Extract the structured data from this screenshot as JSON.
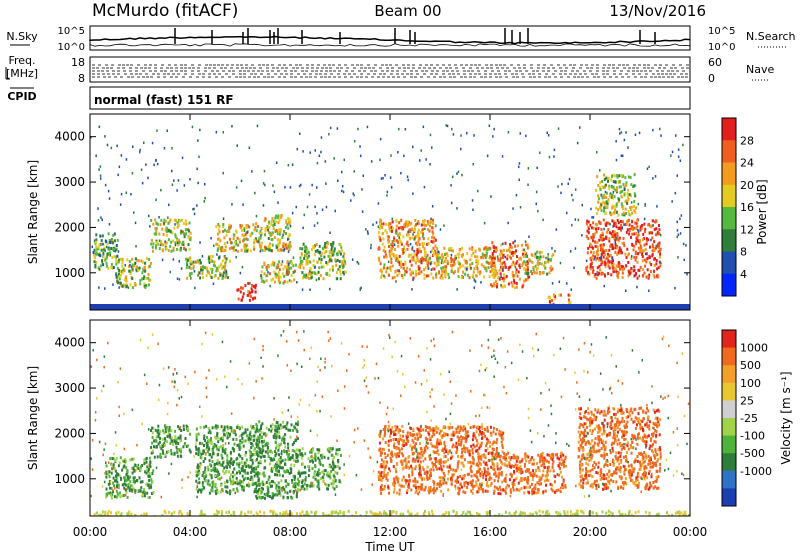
{
  "header": {
    "station": "McMurdo  (fitACF)",
    "beam": "Beam 00",
    "date": "13/Nov/2016"
  },
  "status_panels": {
    "nsky": {
      "label": "N.Sky",
      "y_ticks_left": [
        "10^5",
        "10^0"
      ],
      "y_ticks_right": [
        "10^5",
        "10^0"
      ],
      "right_label": "N.Search"
    },
    "freq": {
      "label_line1": "Freq.",
      "label_line2": "[MHz]",
      "y_ticks_left": [
        "18",
        "8"
      ],
      "y_ticks_right": [
        "60",
        "0"
      ],
      "right_label": "Nave"
    },
    "cpid": {
      "label": "CPID",
      "text": "normal (fast) 151 RF"
    }
  },
  "chart_data": [
    {
      "type": "heatmap",
      "name": "power-panel",
      "ylabel": "Slant Range [km]",
      "yticks": [
        "4000",
        "3000",
        "2000",
        "1000"
      ],
      "ylim": [
        180,
        4500
      ],
      "colorbar": {
        "label": "Power [dB]",
        "ticks": [
          "28",
          "24",
          "20",
          "16",
          "12",
          "8",
          "4"
        ],
        "colors": [
          "#0026ff",
          "#1f4fb0",
          "#2f7f3a",
          "#56b93f",
          "#e3cc1f",
          "#f39a1f",
          "#ef5f1f",
          "#e21f1f"
        ]
      },
      "echo_regions": [
        {
          "t": [
            0.1,
            1.1
          ],
          "r": [
            1100,
            1900
          ],
          "level": 0.25
        },
        {
          "t": [
            1.0,
            2.4
          ],
          "r": [
            700,
            1350
          ],
          "level": 0.35
        },
        {
          "t": [
            2.4,
            4.0
          ],
          "r": [
            1500,
            2200
          ],
          "level": 0.4
        },
        {
          "t": [
            3.8,
            5.6
          ],
          "r": [
            900,
            1400
          ],
          "level": 0.35
        },
        {
          "t": [
            5.0,
            6.6
          ],
          "r": [
            1500,
            2100
          ],
          "level": 0.45
        },
        {
          "t": [
            5.8,
            6.6
          ],
          "r": [
            420,
            800
          ],
          "level": 0.9
        },
        {
          "t": [
            6.6,
            8.0
          ],
          "r": [
            1500,
            2300
          ],
          "level": 0.45
        },
        {
          "t": [
            6.8,
            8.2
          ],
          "r": [
            800,
            1300
          ],
          "level": 0.45
        },
        {
          "t": [
            8.3,
            10.2
          ],
          "r": [
            900,
            1700
          ],
          "level": 0.3
        },
        {
          "t": [
            11.5,
            13.8
          ],
          "r": [
            900,
            2200
          ],
          "level": 0.6
        },
        {
          "t": [
            13.8,
            16.2
          ],
          "r": [
            900,
            1600
          ],
          "level": 0.5
        },
        {
          "t": [
            16.0,
            17.5
          ],
          "r": [
            700,
            1700
          ],
          "level": 0.7
        },
        {
          "t": [
            17.3,
            18.5
          ],
          "r": [
            1000,
            1500
          ],
          "level": 0.4
        },
        {
          "t": [
            18.3,
            19.2
          ],
          "r": [
            250,
            550
          ],
          "level": 0.65
        },
        {
          "t": [
            19.8,
            22.8
          ],
          "r": [
            900,
            2200
          ],
          "level": 0.8
        },
        {
          "t": [
            20.2,
            21.8
          ],
          "r": [
            2300,
            3200
          ],
          "level": 0.35
        }
      ]
    },
    {
      "type": "heatmap",
      "name": "velocity-panel",
      "ylabel": "Slant Range [km]",
      "yticks": [
        "4000",
        "3000",
        "2000",
        "1000"
      ],
      "ylim": [
        180,
        4500
      ],
      "xlabel": "Time UT",
      "xticks": [
        "00:00",
        "04:00",
        "08:00",
        "12:00",
        "16:00",
        "20:00",
        "00:00"
      ],
      "xlim_hours": [
        0,
        24
      ],
      "colorbar": {
        "label": "Velocity  [m s⁻¹]",
        "ticks": [
          "1000",
          "500",
          "100",
          "25",
          "-25",
          "-100",
          "-500",
          "-1000"
        ],
        "colors": [
          "#1b3fb0",
          "#2e73c6",
          "#2f7d3a",
          "#4fb33a",
          "#9fd34a",
          "#cfcfcf",
          "#e8c830",
          "#f2a02a",
          "#ef6a1e",
          "#e2241e"
        ]
      },
      "echo_regions": [
        {
          "t": [
            0.6,
            2.5
          ],
          "r": [
            600,
            1500
          ],
          "level": 0.35
        },
        {
          "t": [
            2.4,
            4.0
          ],
          "r": [
            1500,
            2200
          ],
          "level": 0.3
        },
        {
          "t": [
            4.2,
            6.8
          ],
          "r": [
            700,
            2200
          ],
          "level": 0.22
        },
        {
          "t": [
            6.6,
            8.3
          ],
          "r": [
            600,
            2300
          ],
          "level": 0.22
        },
        {
          "t": [
            8.3,
            10.0
          ],
          "r": [
            800,
            1700
          ],
          "level": 0.3
        },
        {
          "t": [
            11.5,
            16.5
          ],
          "r": [
            700,
            2200
          ],
          "level": 0.8
        },
        {
          "t": [
            16.5,
            19.0
          ],
          "r": [
            700,
            1600
          ],
          "level": 0.75
        },
        {
          "t": [
            19.5,
            22.8
          ],
          "r": [
            800,
            2600
          ],
          "level": 0.85
        },
        {
          "t": [
            0.0,
            24.0
          ],
          "r": [
            180,
            320
          ],
          "level": 0.55
        }
      ]
    }
  ]
}
